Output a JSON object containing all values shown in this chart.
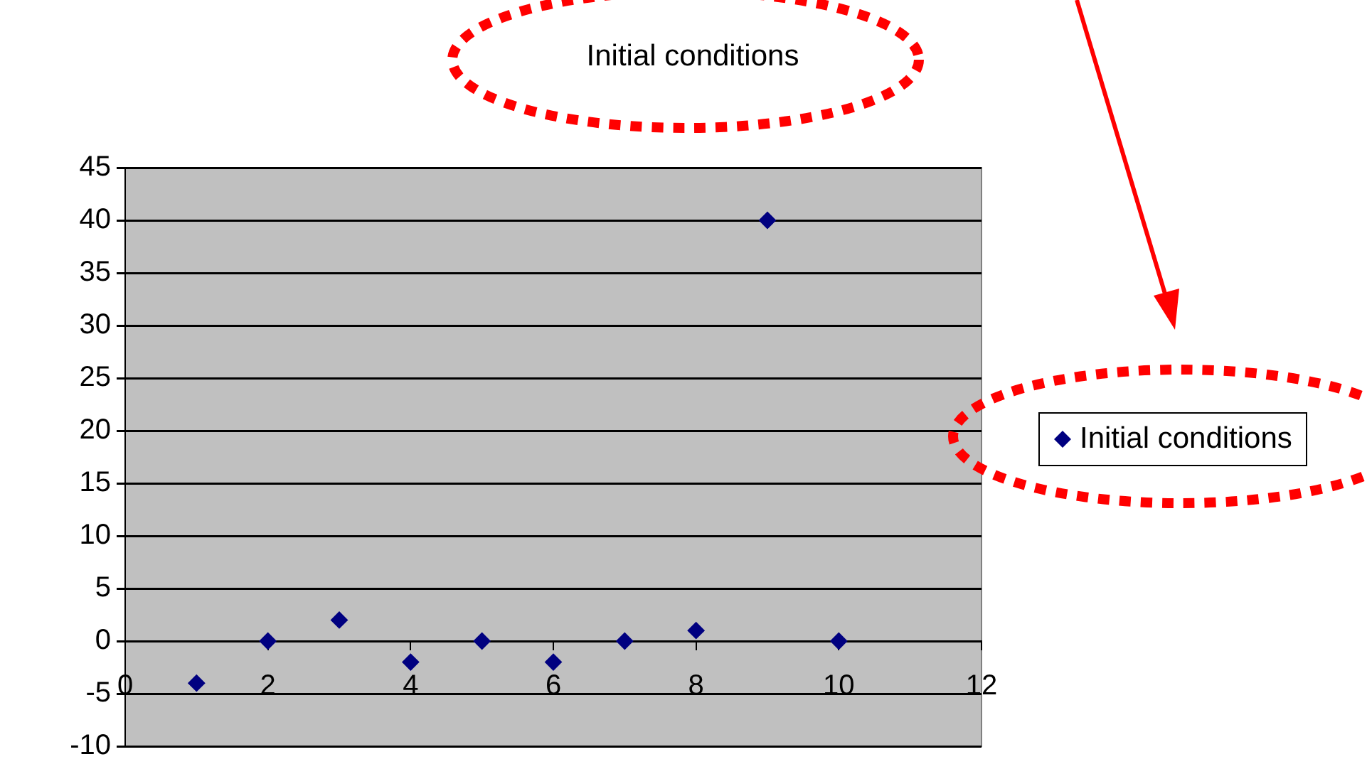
{
  "chart_data": {
    "type": "scatter",
    "title": "Initial conditions",
    "x": [
      1,
      2,
      3,
      4,
      5,
      6,
      7,
      8,
      9,
      10
    ],
    "series": [
      {
        "name": "Initial conditions",
        "color": "#000080",
        "values": [
          -4,
          0,
          2,
          -2,
          0,
          -2,
          0,
          1,
          40,
          0
        ]
      }
    ],
    "xlim": [
      0,
      12
    ],
    "xticks": [
      0,
      2,
      4,
      6,
      8,
      10,
      12
    ],
    "ylim": [
      -10,
      45
    ],
    "yticks": [
      -10,
      -5,
      0,
      5,
      10,
      15,
      20,
      25,
      30,
      35,
      40,
      45
    ],
    "grid": "y",
    "legend": "right",
    "marker": "diamond"
  }
}
